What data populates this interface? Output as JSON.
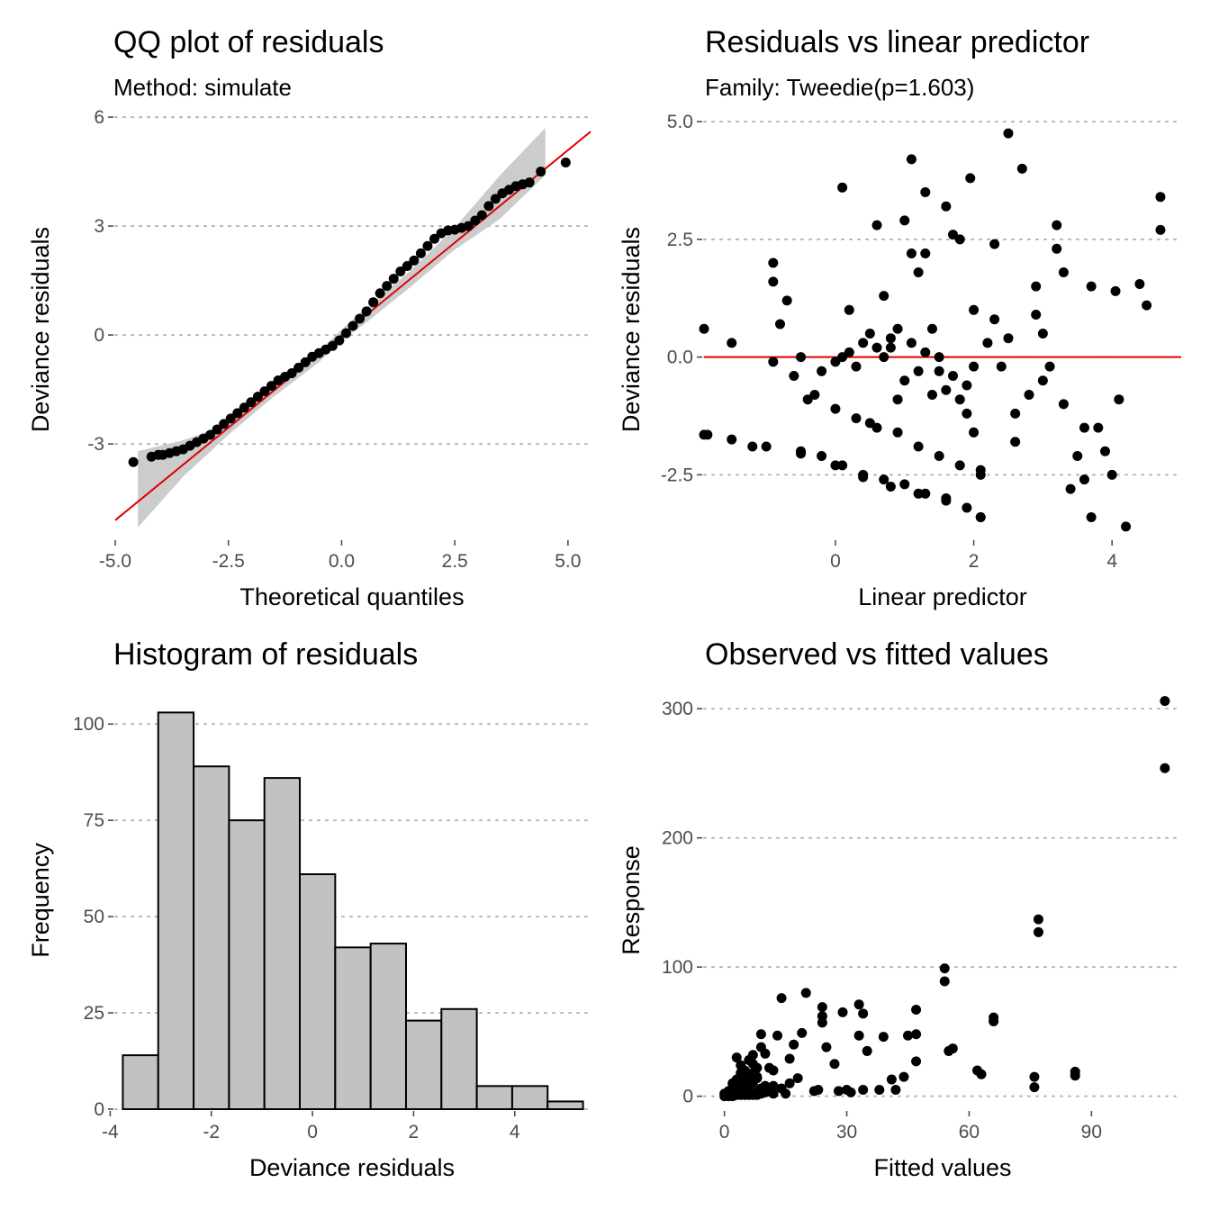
{
  "chart_data": [
    {
      "id": "qq",
      "type": "scatter",
      "title": "QQ plot of residuals",
      "subtitle": "Method: simulate",
      "xlabel": "Theoretical quantiles",
      "ylabel": "Deviance residuals",
      "xlim": [
        -5.0,
        5.5
      ],
      "ylim": [
        -5.6,
        6.2
      ],
      "xticks": [
        -5.0,
        -2.5,
        0.0,
        2.5,
        5.0
      ],
      "xtick_labels": [
        "-5.0",
        "-2.5",
        "0.0",
        "2.5",
        "5.0"
      ],
      "yticks": [
        -3,
        0,
        3,
        6
      ],
      "ytick_labels": [
        "-3",
        "0",
        "3",
        "6"
      ],
      "grid": "horizontal-dotted",
      "reference_line": {
        "x": [
          -5.0,
          5.5
        ],
        "y": [
          -5.1,
          5.6
        ],
        "color": "#e00000"
      },
      "band": {
        "x": [
          -4.5,
          -3.5,
          -2.5,
          -1.5,
          -0.5,
          0.0,
          0.5,
          1.5,
          2.5,
          3.5,
          4.5
        ],
        "lower": [
          -5.3,
          -3.9,
          -2.75,
          -1.7,
          -0.75,
          -0.15,
          0.3,
          1.3,
          2.35,
          3.2,
          4.4
        ],
        "upper": [
          -3.2,
          -2.9,
          -2.45,
          -1.45,
          -0.45,
          0.15,
          0.7,
          1.75,
          2.95,
          4.4,
          5.7
        ],
        "color": "#cccccc"
      },
      "points": {
        "x": [
          -4.6,
          -4.2,
          -4.05,
          -3.95,
          -3.8,
          -3.65,
          -3.5,
          -3.35,
          -3.2,
          -3.05,
          -2.9,
          -2.75,
          -2.6,
          -2.45,
          -2.3,
          -2.15,
          -2.0,
          -1.85,
          -1.7,
          -1.55,
          -1.4,
          -1.25,
          -1.1,
          -0.95,
          -0.8,
          -0.65,
          -0.5,
          -0.35,
          -0.2,
          -0.05,
          0.1,
          0.25,
          0.4,
          0.55,
          0.7,
          0.85,
          1.0,
          1.15,
          1.3,
          1.45,
          1.6,
          1.75,
          1.9,
          2.05,
          2.2,
          2.35,
          2.5,
          2.65,
          2.8,
          2.95,
          3.1,
          3.25,
          3.4,
          3.55,
          3.7,
          3.85,
          4.0,
          4.15,
          4.4,
          4.95
        ],
        "y": [
          -3.5,
          -3.35,
          -3.3,
          -3.3,
          -3.25,
          -3.2,
          -3.15,
          -3.05,
          -2.95,
          -2.85,
          -2.75,
          -2.6,
          -2.45,
          -2.3,
          -2.15,
          -2.0,
          -1.85,
          -1.7,
          -1.55,
          -1.4,
          -1.25,
          -1.15,
          -1.05,
          -0.9,
          -0.75,
          -0.6,
          -0.5,
          -0.4,
          -0.3,
          -0.15,
          0.05,
          0.25,
          0.45,
          0.65,
          0.9,
          1.15,
          1.35,
          1.55,
          1.75,
          1.9,
          2.05,
          2.25,
          2.45,
          2.65,
          2.8,
          2.88,
          2.9,
          2.95,
          3.0,
          3.15,
          3.3,
          3.55,
          3.75,
          3.9,
          4.0,
          4.1,
          4.15,
          4.2,
          4.5,
          4.75
        ]
      }
    },
    {
      "id": "rvl",
      "type": "scatter",
      "title": "Residuals vs linear predictor",
      "subtitle": "Family: Tweedie(p=1.603)",
      "xlabel": "Linear predictor",
      "ylabel": "Deviance residuals",
      "xlim": [
        -1.9,
        5.0
      ],
      "ylim": [
        -3.85,
        5.25
      ],
      "xticks": [
        0,
        2,
        4
      ],
      "xtick_labels": [
        "0",
        "2",
        "4"
      ],
      "yticks": [
        -2.5,
        0.0,
        2.5,
        5.0
      ],
      "ytick_labels": [
        "-2.5",
        "0.0",
        "2.5",
        "5.0"
      ],
      "grid": "horizontal-dotted",
      "hline": {
        "y": 0.0,
        "color": "#e00000"
      },
      "points": {
        "x": [
          -1.9,
          -1.85,
          -1.5,
          -1.2,
          -0.9,
          -0.9,
          -0.8,
          -0.7,
          -0.5,
          -0.4,
          -0.2,
          0.0,
          0.1,
          0.2,
          0.3,
          0.4,
          0.5,
          0.6,
          0.7,
          0.8,
          0.9,
          1.0,
          1.1,
          1.2,
          1.3,
          1.4,
          1.5,
          1.6,
          1.7,
          1.8,
          1.9,
          2.0,
          2.1,
          -0.9,
          -0.6,
          -0.3,
          0.0,
          0.3,
          0.6,
          0.9,
          1.2,
          1.5,
          1.8,
          2.1,
          -0.5,
          -0.2,
          0.1,
          0.4,
          0.7,
          1.0,
          1.3,
          1.6,
          1.9,
          2.1,
          -1.9,
          -1.5,
          -1.0,
          -0.5,
          0.0,
          0.4,
          0.8,
          1.2,
          1.6,
          2.1,
          0.1,
          0.6,
          1.1,
          1.6,
          2.5,
          1.0,
          1.3,
          1.95,
          2.7,
          1.3,
          1.7,
          2.3,
          3.2,
          2.0,
          3.2,
          2.9,
          3.7,
          4.05,
          4.4,
          4.5,
          4.7,
          4.7,
          3.9,
          3.6,
          3.0,
          2.8,
          2.4,
          2.2,
          3.3,
          3.5,
          3.7,
          4.0,
          4.2,
          3.1,
          2.6,
          3.4,
          1.9,
          0.5,
          0.9,
          1.5,
          2.3,
          3.8,
          3.0,
          2.6,
          1.1,
          0.2,
          0.7,
          1.8,
          1.4,
          2.0,
          2.9,
          3.6,
          4.1,
          1.2,
          0.8,
          2.5,
          3.3
        ],
        "y": [
          0.6,
          -1.65,
          0.3,
          -1.9,
          2.0,
          1.6,
          0.7,
          1.2,
          0.0,
          -0.9,
          -0.3,
          -0.1,
          0.0,
          0.1,
          -0.2,
          0.3,
          0.5,
          0.2,
          0.0,
          0.4,
          0.6,
          -0.5,
          0.3,
          -0.3,
          0.1,
          -0.8,
          0.0,
          -0.7,
          -0.4,
          -0.9,
          -1.2,
          -1.6,
          -2.4,
          -0.1,
          -0.4,
          -0.8,
          -1.1,
          -1.3,
          -1.5,
          -1.6,
          -1.9,
          -2.1,
          -2.3,
          -2.5,
          -2.0,
          -2.1,
          -2.3,
          -2.5,
          -2.6,
          -2.7,
          -2.9,
          -3.0,
          -3.2,
          -3.4,
          -1.65,
          -1.75,
          -1.9,
          -2.05,
          -2.3,
          -2.55,
          -2.75,
          -2.9,
          -3.05,
          -3.4,
          3.6,
          2.8,
          4.2,
          3.2,
          4.75,
          2.9,
          3.5,
          3.8,
          4.0,
          2.2,
          2.6,
          2.4,
          2.8,
          1.0,
          2.3,
          1.5,
          1.5,
          1.4,
          1.55,
          1.1,
          3.4,
          2.7,
          -2.0,
          -1.5,
          -0.5,
          -0.8,
          -0.2,
          0.3,
          -1.0,
          -2.1,
          -3.4,
          -2.5,
          -3.6,
          -0.2,
          -1.2,
          -2.8,
          -0.6,
          -1.4,
          -0.9,
          -0.3,
          0.8,
          -1.5,
          0.5,
          -1.8,
          2.2,
          1.0,
          1.3,
          2.5,
          0.6,
          -0.2,
          0.9,
          -2.6,
          -0.9,
          1.8,
          0.2,
          0.4,
          1.8
        ]
      }
    },
    {
      "id": "hist",
      "type": "bar",
      "title": "Histogram of residuals",
      "xlabel": "Deviance residuals",
      "ylabel": "Frequency",
      "xlim": [
        -3.9,
        5.5
      ],
      "ylim": [
        0,
        108
      ],
      "xticks": [
        -4,
        -2,
        0,
        2,
        4
      ],
      "xtick_labels": [
        "-4",
        "-2",
        "0",
        "2",
        "4"
      ],
      "yticks": [
        0,
        25,
        50,
        75,
        100
      ],
      "ytick_labels": [
        "0",
        "25",
        "50",
        "75",
        "100"
      ],
      "grid": "horizontal-dotted",
      "bin_edges": [
        -3.75,
        -3.05,
        -2.35,
        -1.65,
        -0.95,
        -0.25,
        0.45,
        1.15,
        1.85,
        2.55,
        3.25,
        3.95,
        4.65,
        5.35
      ],
      "values": [
        14,
        103,
        89,
        75,
        86,
        61,
        42,
        43,
        23,
        26,
        6,
        6,
        2
      ],
      "bar_fill": "#c2c2c2",
      "bar_stroke": "#000000"
    },
    {
      "id": "ovf",
      "type": "scatter",
      "title": "Observed vs fitted values",
      "xlabel": "Fitted values",
      "ylabel": "Response",
      "xlim": [
        -5,
        112
      ],
      "ylim": [
        -10,
        312
      ],
      "xticks": [
        0,
        30,
        60,
        90
      ],
      "xtick_labels": [
        "0",
        "30",
        "60",
        "90"
      ],
      "yticks": [
        0,
        100,
        200,
        300
      ],
      "ytick_labels": [
        "0",
        "100",
        "200",
        "300"
      ],
      "grid": "horizontal-dotted",
      "points": {
        "x": [
          108,
          108,
          77,
          77,
          54,
          54,
          86,
          86,
          76,
          76,
          66,
          66,
          47,
          47,
          47,
          45,
          42,
          39,
          38,
          33,
          33,
          34,
          34,
          30,
          31,
          29,
          28,
          24,
          24,
          24,
          23,
          22,
          20,
          17,
          16,
          16,
          15,
          14,
          13,
          12,
          12,
          11,
          10,
          9,
          9,
          8,
          8,
          7,
          7,
          7,
          6,
          6,
          6,
          5,
          5,
          5,
          4,
          4,
          4,
          3,
          3,
          3,
          2,
          2,
          2,
          1,
          1,
          1,
          0,
          0,
          56,
          55,
          62,
          63,
          44,
          41,
          35,
          27,
          25,
          19,
          18,
          14,
          11,
          10,
          9,
          8,
          7,
          6,
          5,
          4,
          3,
          2,
          1,
          5,
          6,
          7,
          8,
          9,
          10,
          12,
          3,
          4,
          6,
          8,
          2
        ],
        "y": [
          306,
          254,
          137,
          127,
          99,
          89,
          19,
          16,
          15,
          7,
          61,
          58,
          67,
          48,
          27,
          47,
          5,
          46,
          5,
          71,
          47,
          64,
          5,
          5,
          3,
          65,
          4,
          69,
          62,
          57,
          5,
          4,
          80,
          40,
          29,
          10,
          2,
          76,
          47,
          20,
          8,
          22,
          33,
          48,
          38,
          22,
          14,
          32,
          25,
          18,
          28,
          16,
          9,
          20,
          12,
          6,
          24,
          15,
          4,
          13,
          8,
          2,
          10,
          5,
          1,
          4,
          2,
          1,
          2,
          0,
          37,
          35,
          20,
          17,
          15,
          13,
          35,
          25,
          38,
          49,
          14,
          6,
          4,
          3,
          2,
          1,
          1,
          1,
          1,
          1,
          1,
          0,
          0,
          3,
          5,
          10,
          15,
          6,
          8,
          2,
          30,
          18,
          12,
          3,
          7
        ]
      }
    }
  ]
}
